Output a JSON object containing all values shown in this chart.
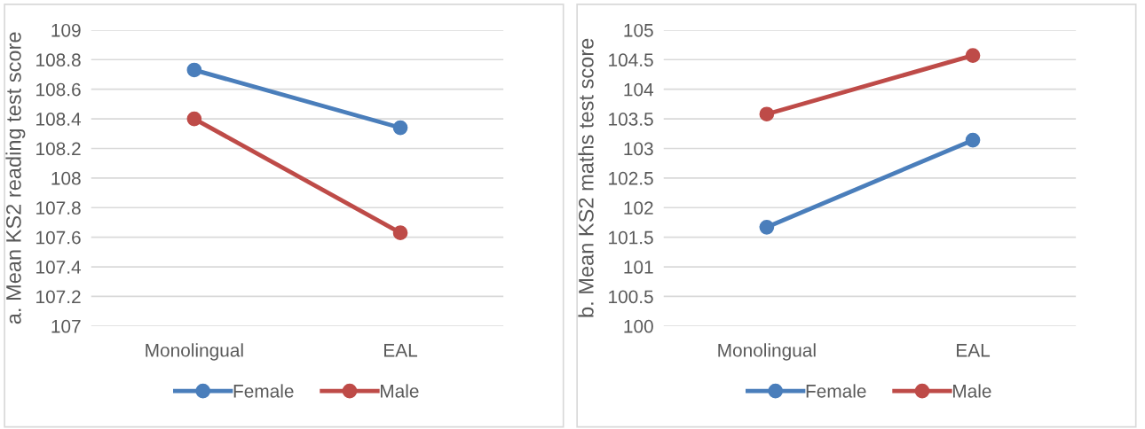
{
  "chart_data": [
    {
      "type": "line",
      "ylabel": "a. Mean KS2 reading test score",
      "categories": [
        "Monolingual",
        "EAL"
      ],
      "series": [
        {
          "name": "Female",
          "color": "#4a7ebb",
          "values": [
            108.73,
            108.34
          ]
        },
        {
          "name": "Male",
          "color": "#be4b48",
          "values": [
            108.4,
            107.63
          ]
        }
      ],
      "ylim": [
        107,
        109
      ],
      "yticks": [
        107,
        {
          "value": 107.2,
          "label": "107.2"
        },
        {
          "value": 107.4,
          "label": "107.4"
        },
        {
          "value": 107.6,
          "label": "107.6"
        },
        {
          "value": 107.8,
          "label": "107.8"
        },
        108,
        {
          "value": 108.2,
          "label": "108.2"
        },
        {
          "value": 108.4,
          "label": "108.4"
        },
        {
          "value": 108.6,
          "label": "108.6"
        },
        {
          "value": 108.8,
          "label": "108.8"
        },
        109
      ],
      "grid": "y",
      "legend": "bottom",
      "marker": "circle",
      "line_style": "solid"
    },
    {
      "type": "line",
      "ylabel": "b. Mean KS2 maths test score",
      "categories": [
        "Monolingual",
        "EAL"
      ],
      "series": [
        {
          "name": "Female",
          "color": "#4a7ebb",
          "values": [
            101.67,
            103.14
          ]
        },
        {
          "name": "Male",
          "color": "#be4b48",
          "values": [
            103.58,
            104.57
          ]
        }
      ],
      "ylim": [
        100,
        105
      ],
      "yticks": [
        100,
        100.5,
        101,
        101.5,
        102,
        102.5,
        103,
        103.5,
        104,
        104.5,
        105
      ],
      "grid": "y",
      "legend": "bottom",
      "marker": "circle",
      "line_style": "solid"
    }
  ]
}
